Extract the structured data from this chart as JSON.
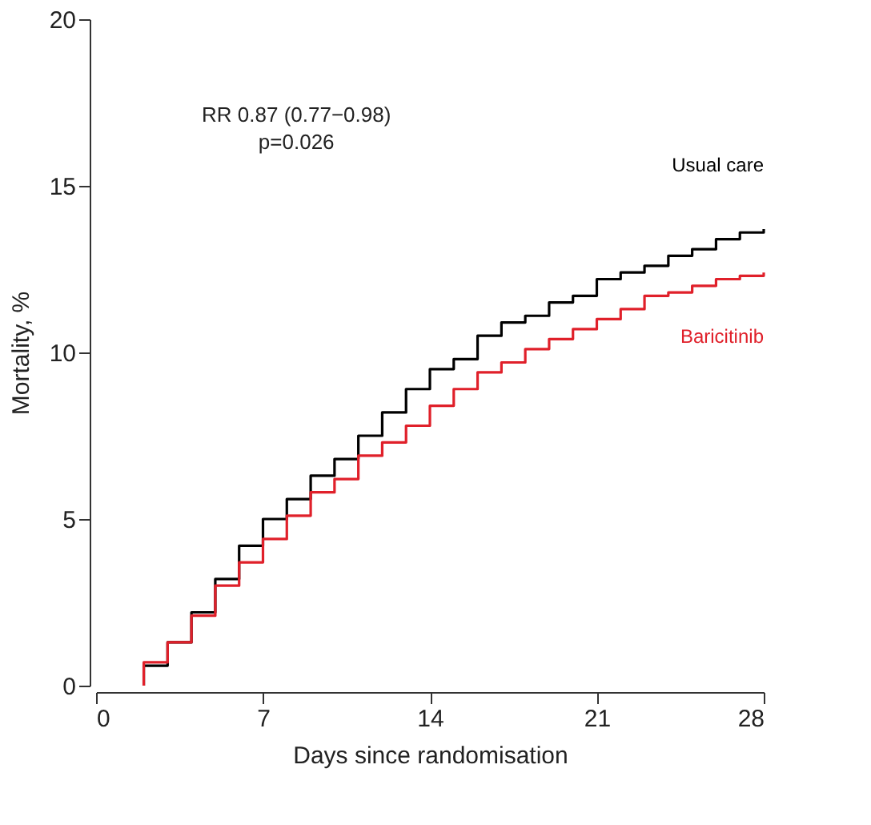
{
  "chart_data": {
    "type": "step",
    "xlabel": "Days since randomisation",
    "ylabel": "Mortality, %",
    "x": [
      2,
      2,
      3,
      4,
      5,
      6,
      7,
      8,
      9,
      10,
      11,
      12,
      13,
      14,
      15,
      16,
      17,
      18,
      19,
      20,
      21,
      22,
      23,
      24,
      25,
      26,
      27,
      28
    ],
    "series": [
      {
        "name": "Usual care",
        "color": "#000000",
        "values": [
          0,
          0.6,
          1.3,
          2.2,
          3.2,
          4.2,
          5.0,
          5.6,
          6.3,
          6.8,
          7.5,
          8.2,
          8.9,
          9.5,
          9.8,
          10.5,
          10.9,
          11.1,
          11.5,
          11.7,
          12.2,
          12.4,
          12.6,
          12.9,
          13.1,
          13.4,
          13.6,
          13.7
        ]
      },
      {
        "name": "Baricitinib",
        "color": "#e0202a",
        "values": [
          0,
          0.7,
          1.3,
          2.1,
          3.0,
          3.7,
          4.4,
          5.1,
          5.8,
          6.2,
          6.9,
          7.3,
          7.8,
          8.4,
          8.9,
          9.4,
          9.7,
          10.1,
          10.4,
          10.7,
          11.0,
          11.3,
          11.7,
          11.8,
          12.0,
          12.2,
          12.3,
          12.4
        ]
      }
    ],
    "xlim": [
      0,
      28
    ],
    "xticks": [
      0,
      7,
      14,
      21,
      28
    ],
    "ylim": [
      0,
      20
    ],
    "yticks": [
      0,
      5,
      10,
      15,
      20
    ],
    "grid": false,
    "legend": false,
    "line_style": "solid",
    "annotations": [
      "RR 0.87 (0.77−0.98)",
      "p=0.026"
    ]
  }
}
